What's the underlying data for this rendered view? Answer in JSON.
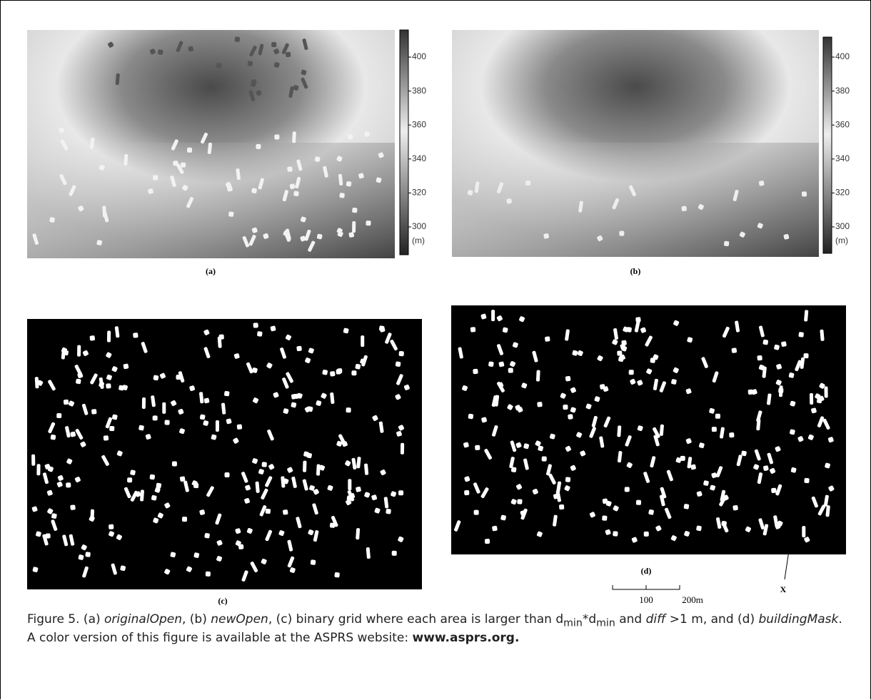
{
  "figure": {
    "panels": [
      {
        "label": "(a)",
        "colorbar": {
          "ticks": [
            400,
            380,
            360,
            340,
            320,
            300
          ],
          "unit": "(m)"
        }
      },
      {
        "label": "(b)",
        "colorbar": {
          "ticks": [
            400,
            380,
            360,
            340,
            320,
            300
          ],
          "unit": "(m)"
        }
      },
      {
        "label": "(c)"
      },
      {
        "label": "(d)",
        "scale_bar": [
          "100",
          "200m"
        ],
        "marker": "X"
      }
    ],
    "caption": [
      "Figure 5. (a) ",
      "originalOpen",
      ", (b) ",
      "newOpen",
      ", (c) binary grid where each area is larger than d",
      "min",
      "*d",
      "min",
      " and ",
      "diff",
      " >1 m, and (d) ",
      "buildingMask",
      ". A color version of this figure is available at the ASPRS website: ",
      "www.asprs.org."
    ]
  }
}
